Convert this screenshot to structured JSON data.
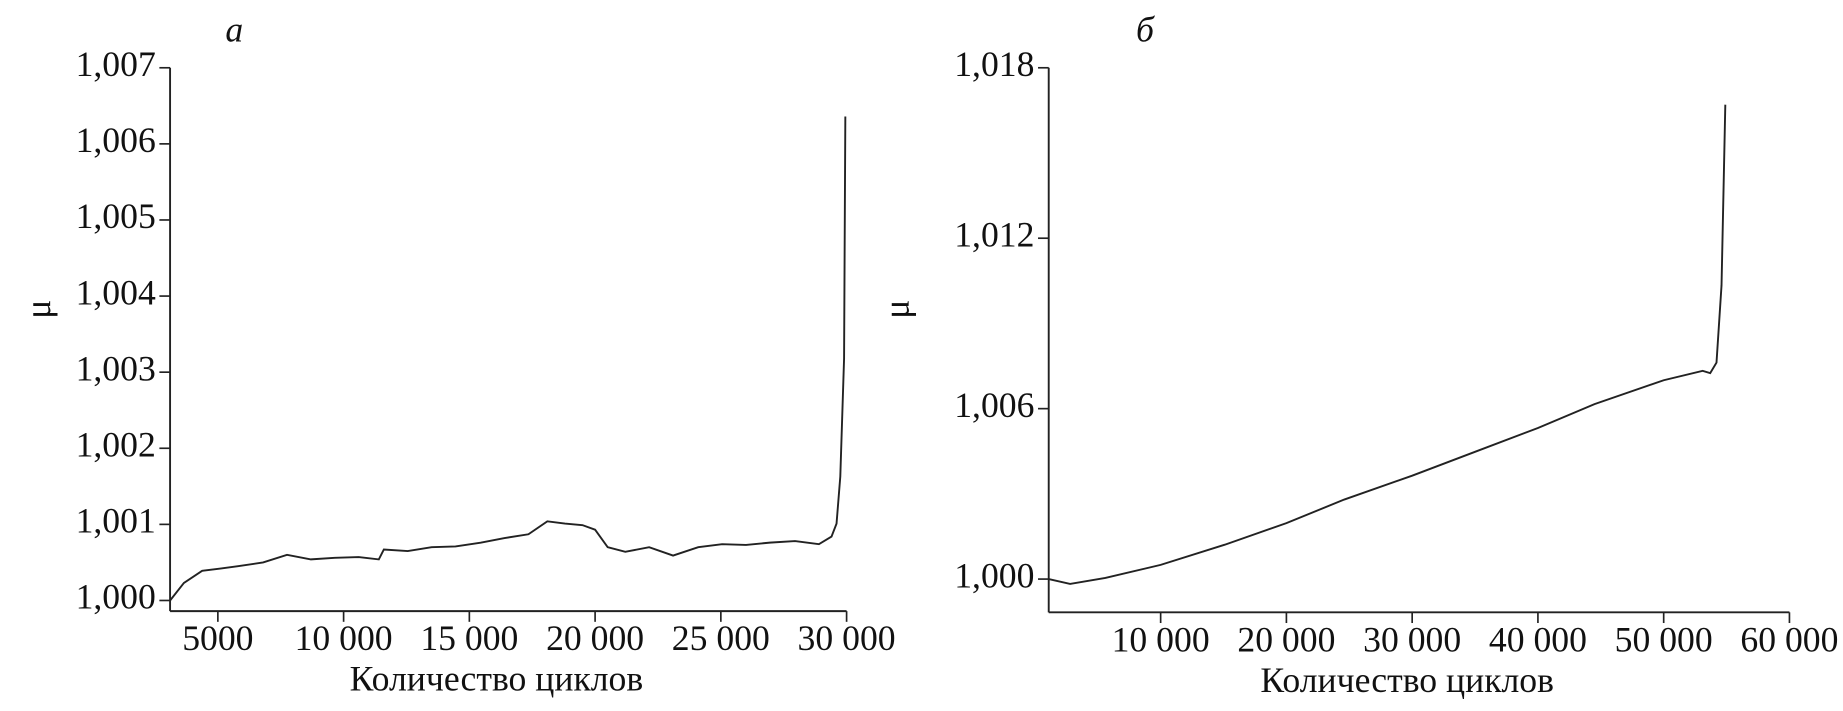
{
  "chart_data": [
    {
      "type": "line",
      "title": "а",
      "xlabel": "Количество циклов",
      "ylabel": "μ",
      "color": "#222222",
      "x": [
        3100,
        3650,
        4375,
        5100,
        5800,
        6800,
        7750,
        8700,
        9650,
        10600,
        11400,
        11600,
        12550,
        13500,
        14450,
        15450,
        16400,
        17350,
        18100,
        18800,
        19500,
        20000,
        20500,
        21200,
        22150,
        23100,
        24100,
        25050,
        26000,
        26950,
        27950,
        28900,
        29400,
        29600,
        29750,
        29900,
        29950
      ],
      "values": [
        1.0,
        1.00023,
        1.00039,
        1.00042,
        1.00045,
        1.0005,
        1.0006,
        1.00054,
        1.00056,
        1.00057,
        1.00054,
        1.00067,
        1.00065,
        1.0007,
        1.00071,
        1.00076,
        1.00082,
        1.00087,
        1.00104,
        1.00101,
        1.00099,
        1.00093,
        1.0007,
        1.00064,
        1.0007,
        1.00059,
        1.0007,
        1.00074,
        1.00073,
        1.00076,
        1.00078,
        1.00074,
        1.00084,
        1.00101,
        1.00163,
        1.00318,
        1.00636
      ],
      "xlim": [
        3100,
        30000
      ],
      "ylim": [
        0.99986,
        1.007
      ],
      "xticks": [
        5000,
        {
          "value": 10000,
          "label": "10 000"
        },
        {
          "value": 15000,
          "label": "15 000"
        },
        {
          "value": 20000,
          "label": "20 000"
        },
        {
          "value": 25000,
          "label": "25 000"
        },
        {
          "value": 30000,
          "label": "30 000"
        }
      ],
      "yticks": [
        {
          "value": 1.0,
          "label": "1,000"
        },
        {
          "value": 1.001,
          "label": "1,001"
        },
        {
          "value": 1.002,
          "label": "1,002"
        },
        {
          "value": 1.003,
          "label": "1,003"
        },
        {
          "value": 1.004,
          "label": "1,004"
        },
        {
          "value": 1.005,
          "label": "1,005"
        },
        {
          "value": 1.006,
          "label": "1,006"
        },
        {
          "value": 1.007,
          "label": "1,007"
        }
      ]
    },
    {
      "type": "line",
      "title": "б",
      "xlabel": "Количество циклов",
      "ylabel": "μ",
      "color": "#222222",
      "x": [
        1100,
        2800,
        5600,
        10000,
        15100,
        20000,
        24600,
        30000,
        35000,
        40000,
        44500,
        50000,
        53100,
        53700,
        54200,
        54600,
        54900
      ],
      "values": [
        1.0,
        0.99983,
        1.00004,
        1.0005,
        1.00121,
        1.00197,
        1.0028,
        1.00364,
        1.00448,
        1.00532,
        1.00616,
        1.007,
        1.00733,
        1.00725,
        1.00762,
        1.01034,
        1.0167
      ],
      "xlim": [
        1100,
        60000
      ],
      "ylim": [
        0.99883,
        1.018
      ],
      "xticks": [
        {
          "value": 10000,
          "label": "10 000"
        },
        {
          "value": 20000,
          "label": "20 000"
        },
        {
          "value": 30000,
          "label": "30 000"
        },
        {
          "value": 40000,
          "label": "40 000"
        },
        {
          "value": 50000,
          "label": "50 000"
        },
        {
          "value": 60000,
          "label": "60 000"
        }
      ],
      "yticks": [
        {
          "value": 1.0,
          "label": "1,000"
        },
        {
          "value": 1.006,
          "label": "1,006"
        },
        {
          "value": 1.012,
          "label": "1,012"
        },
        {
          "value": 1.018,
          "label": "1,018"
        }
      ]
    }
  ]
}
